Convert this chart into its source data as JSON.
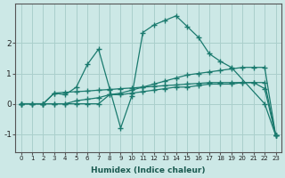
{
  "xlabel": "Humidex (Indice chaleur)",
  "bg_color": "#cce8e6",
  "grid_color": "#aacfcc",
  "line_color": "#1a7a6e",
  "xlim": [
    -0.5,
    23.5
  ],
  "ylim": [
    -1.6,
    3.3
  ],
  "xticks": [
    0,
    1,
    2,
    3,
    4,
    5,
    6,
    7,
    8,
    9,
    10,
    11,
    12,
    13,
    14,
    15,
    16,
    17,
    18,
    19,
    20,
    21,
    22,
    23
  ],
  "yticks": [
    -1,
    0,
    1,
    2
  ],
  "lines": [
    {
      "x": [
        0,
        2,
        3,
        4,
        5,
        6,
        7,
        8,
        9,
        10,
        11,
        12,
        13,
        14,
        15,
        16,
        17,
        18,
        19,
        22,
        23
      ],
      "y": [
        0.0,
        0.0,
        0.35,
        0.3,
        0.55,
        1.3,
        1.8,
        0.5,
        -0.8,
        0.25,
        2.35,
        2.6,
        2.75,
        2.9,
        2.55,
        2.2,
        1.65,
        1.4,
        1.2,
        0.0,
        -1.05
      ]
    },
    {
      "x": [
        0,
        1,
        2,
        3,
        4,
        5,
        6,
        7,
        8,
        9,
        10,
        11,
        12,
        13,
        14,
        15,
        16,
        17,
        18,
        19,
        20,
        21,
        22,
        23
      ],
      "y": [
        0.0,
        0.0,
        0.0,
        0.0,
        0.0,
        0.0,
        0.0,
        0.0,
        0.3,
        0.3,
        0.35,
        0.4,
        0.45,
        0.5,
        0.55,
        0.55,
        0.6,
        0.65,
        0.65,
        0.65,
        0.7,
        0.7,
        0.7,
        -1.05
      ]
    },
    {
      "x": [
        0,
        1,
        2,
        3,
        4,
        5,
        6,
        7,
        8,
        9,
        10,
        11,
        12,
        13,
        14,
        15,
        16,
        17,
        18,
        19,
        20,
        21,
        22,
        23
      ],
      "y": [
        0.0,
        0.0,
        0.0,
        0.0,
        0.0,
        0.1,
        0.15,
        0.2,
        0.3,
        0.35,
        0.45,
        0.55,
        0.65,
        0.75,
        0.85,
        0.95,
        1.0,
        1.05,
        1.1,
        1.15,
        1.2,
        1.2,
        1.2,
        -1.05
      ]
    },
    {
      "x": [
        0,
        1,
        2,
        3,
        4,
        5,
        6,
        7,
        8,
        9,
        10,
        11,
        12,
        13,
        14,
        15,
        16,
        17,
        18,
        19,
        20,
        21,
        22,
        23
      ],
      "y": [
        0.0,
        0.0,
        0.0,
        0.35,
        0.38,
        0.4,
        0.42,
        0.45,
        0.47,
        0.5,
        0.52,
        0.55,
        0.57,
        0.6,
        0.62,
        0.65,
        0.67,
        0.7,
        0.7,
        0.7,
        0.7,
        0.7,
        0.5,
        -1.05
      ]
    }
  ]
}
